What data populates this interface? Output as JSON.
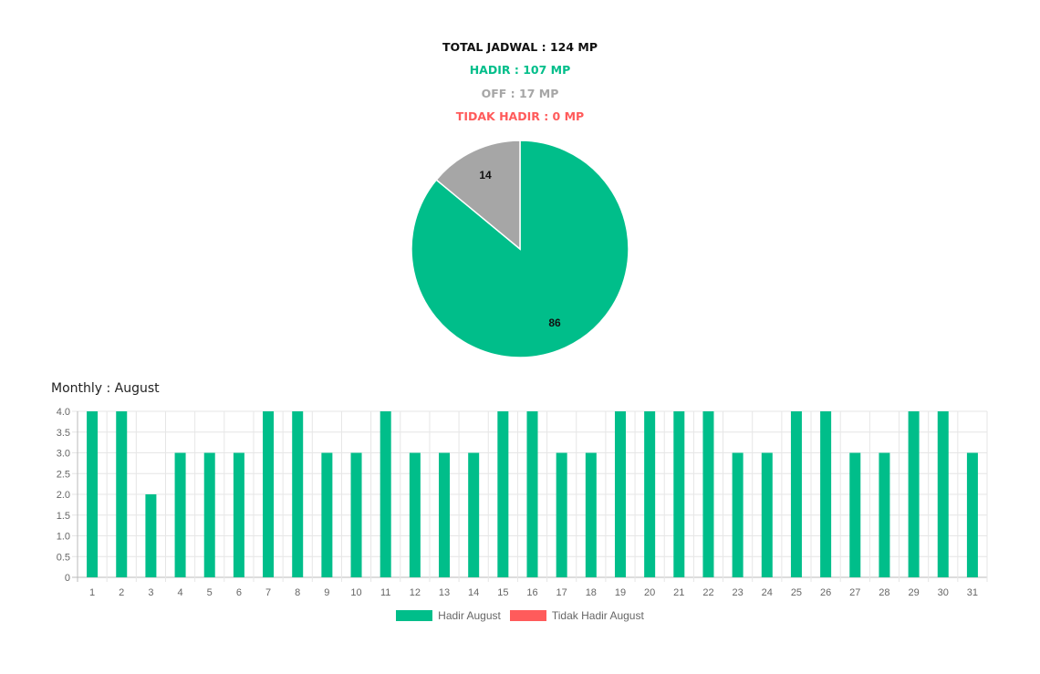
{
  "summary": {
    "total": {
      "text": "TOTAL JADWAL : 124 MP",
      "color": "#111111"
    },
    "hadir": {
      "text": "HADIR : 107 MP",
      "color": "#00BE8A"
    },
    "off": {
      "text": "OFF : 17 MP",
      "color": "#A6A6A6"
    },
    "tidak": {
      "text": "TIDAK HADIR : 0 MP",
      "color": "#FF5B5B"
    }
  },
  "colors": {
    "hadir": "#00BE8A",
    "off": "#A6A6A6",
    "tidak": "#FF5B5B"
  },
  "monthly_title": "Monthly : August",
  "chart_data": [
    {
      "type": "pie",
      "slices": [
        {
          "label": "86",
          "value": 86,
          "color": "#00BE8A"
        },
        {
          "label": "14",
          "value": 14,
          "color": "#A6A6A6"
        }
      ]
    },
    {
      "type": "bar",
      "categories": [
        "1",
        "2",
        "3",
        "4",
        "5",
        "6",
        "7",
        "8",
        "9",
        "10",
        "11",
        "12",
        "13",
        "14",
        "15",
        "16",
        "17",
        "18",
        "19",
        "20",
        "21",
        "22",
        "23",
        "24",
        "25",
        "26",
        "27",
        "28",
        "29",
        "30",
        "31"
      ],
      "series": [
        {
          "name": "Hadir August",
          "color": "#00BE8A",
          "values": [
            4,
            4,
            2,
            3,
            3,
            3,
            4,
            4,
            3,
            3,
            4,
            3,
            3,
            3,
            4,
            4,
            3,
            3,
            4,
            4,
            4,
            4,
            3,
            3,
            4,
            4,
            3,
            3,
            4,
            4,
            3
          ]
        },
        {
          "name": "Tidak Hadir August",
          "color": "#FF5B5B",
          "values": [
            0,
            0,
            0,
            0,
            0,
            0,
            0,
            0,
            0,
            0,
            0,
            0,
            0,
            0,
            0,
            0,
            0,
            0,
            0,
            0,
            0,
            0,
            0,
            0,
            0,
            0,
            0,
            0,
            0,
            0,
            0
          ]
        }
      ],
      "ylim": [
        0,
        4
      ],
      "yticks": [
        "0",
        "0.5",
        "1.0",
        "1.5",
        "2.0",
        "2.5",
        "3.0",
        "3.5",
        "4.0"
      ],
      "grid": true,
      "legend": "bottom"
    }
  ]
}
